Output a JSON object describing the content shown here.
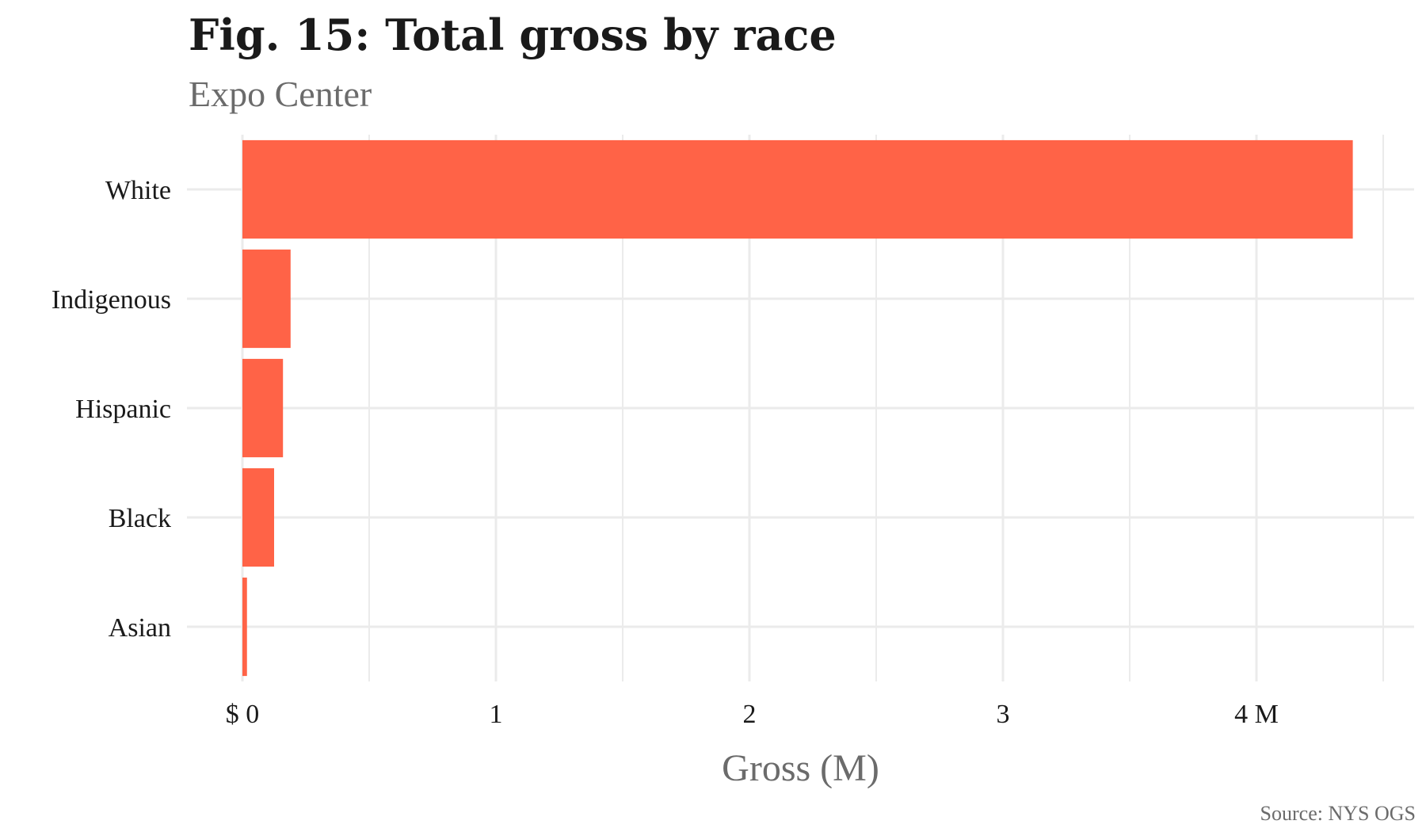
{
  "title": "Fig. 15: Total gross by race",
  "subtitle": "Expo Center",
  "caption": "Source: NYS OGS",
  "colors": {
    "bar": "#ff6347",
    "grid": "#ebebeb",
    "background": "#ffffff"
  },
  "chart_data": {
    "type": "bar",
    "orientation": "horizontal",
    "categories": [
      "White",
      "Indigenous",
      "Hispanic",
      "Black",
      "Asian"
    ],
    "values": [
      4.38,
      0.19,
      0.16,
      0.125,
      0.018
    ],
    "xlabel": "Gross (M)",
    "ylabel": "",
    "xlim": [
      0,
      4.6
    ],
    "x_ticks": [
      0,
      1,
      2,
      3,
      4
    ],
    "x_tick_labels": [
      "$ 0",
      "1",
      "2",
      "3",
      "4 M"
    ],
    "grid": true,
    "legend": "none"
  }
}
